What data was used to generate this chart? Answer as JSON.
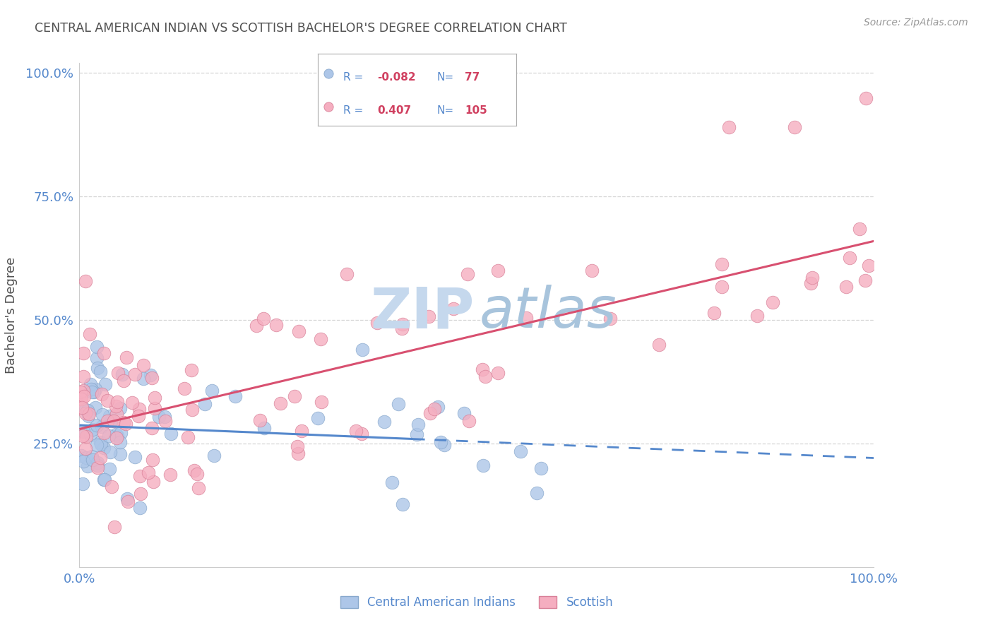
{
  "title": "CENTRAL AMERICAN INDIAN VS SCOTTISH BACHELOR'S DEGREE CORRELATION CHART",
  "source": "Source: ZipAtlas.com",
  "ylabel": "Bachelor's Degree",
  "legend_blue_R": "-0.082",
  "legend_blue_N": "77",
  "legend_pink_R": "0.407",
  "legend_pink_N": "105",
  "blue_color": "#adc6e8",
  "pink_color": "#f5aec0",
  "blue_edge_color": "#88a8cc",
  "pink_edge_color": "#d88098",
  "blue_line_color": "#5588cc",
  "pink_line_color": "#d85070",
  "axis_label_color": "#5588cc",
  "title_color": "#505050",
  "background_color": "#ffffff",
  "grid_color": "#cccccc",
  "legend_border_color": "#aaaaaa",
  "source_color": "#999999"
}
